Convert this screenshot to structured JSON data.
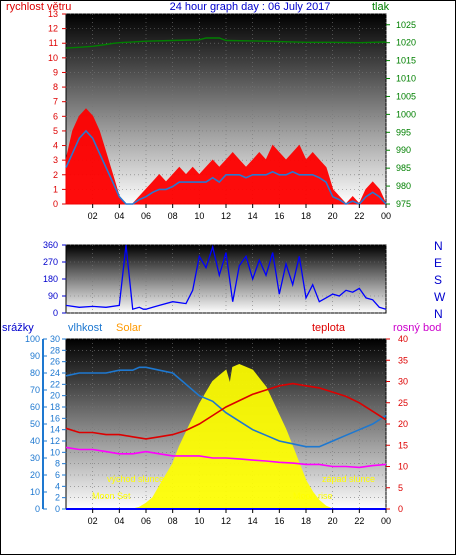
{
  "chart_data": [
    {
      "type": "line",
      "title": "24 hour graph day : 06 July 2017",
      "left_axis_label": "rychlost větru",
      "right_axis_label": "tlak",
      "x_tick_labels": [
        "02",
        "04",
        "06",
        "08",
        "10",
        "12",
        "14",
        "16",
        "18",
        "20",
        "22",
        "00"
      ],
      "left_ylim": [
        0,
        13
      ],
      "left_tick_labels": [
        "0",
        "1",
        "2",
        "3",
        "4",
        "5",
        "6",
        "7",
        "8",
        "9",
        "10",
        "11",
        "12",
        "13"
      ],
      "right_ylim": [
        975,
        1028
      ],
      "right_tick_labels": [
        "975",
        "980",
        "985",
        "990",
        "995",
        "1000",
        "1005",
        "1010",
        "1015",
        "1020",
        "1025"
      ],
      "series": [
        {
          "name": "tlak",
          "color": "#008000",
          "x": [
            0,
            1,
            2,
            3,
            3.5,
            4,
            6,
            8,
            10,
            10.5,
            11.5,
            12,
            14,
            16,
            18,
            20,
            22,
            24
          ],
          "y": [
            1018.5,
            1018.7,
            1019,
            1019.5,
            1019.8,
            1020,
            1020.4,
            1020.6,
            1020.8,
            1021.3,
            1021.3,
            1020.6,
            1020.5,
            1020.3,
            1020.1,
            1020.1,
            1020,
            1020.2
          ]
        },
        {
          "color": "#ff0000",
          "x": [
            0,
            0.5,
            1,
            1.5,
            2,
            2.5,
            3,
            3.5,
            4,
            4.5,
            5,
            5.5,
            6,
            6.5,
            7,
            7.5,
            8,
            8.5,
            9,
            9.5,
            10,
            10.5,
            11,
            11.5,
            12,
            12.5,
            13,
            13.5,
            14,
            14.5,
            15,
            15.5,
            16,
            16.5,
            17,
            17.5,
            18,
            18.5,
            19,
            19.5,
            20,
            20.5,
            21,
            21.5,
            22,
            22.5,
            23,
            23.5,
            24
          ],
          "y": [
            3,
            5,
            6,
            6.5,
            6,
            5,
            3.5,
            2,
            0.5,
            0,
            0,
            0.5,
            1,
            1.5,
            2,
            1.5,
            2,
            2.5,
            2,
            2.5,
            2,
            2.5,
            3,
            2.5,
            3,
            3.5,
            3,
            2.5,
            3,
            3.5,
            3,
            4,
            3.5,
            3,
            3.5,
            4,
            3,
            3.5,
            3,
            2.5,
            1,
            0.5,
            0,
            0.5,
            0,
            1,
            1.5,
            1,
            0
          ]
        },
        {
          "color": "#2a78d0",
          "x": [
            0,
            0.5,
            1,
            1.5,
            2,
            2.5,
            3,
            3.5,
            4,
            4.5,
            5,
            5.5,
            6,
            6.5,
            7,
            7.5,
            8,
            8.5,
            9,
            9.5,
            10,
            10.5,
            11,
            11.5,
            12,
            12.5,
            13,
            13.5,
            14,
            14.5,
            15,
            15.5,
            16,
            16.5,
            17,
            17.5,
            18,
            18.5,
            19,
            19.5,
            20,
            20.5,
            21,
            21.5,
            22,
            22.5,
            23,
            23.5,
            24
          ],
          "y": [
            2.5,
            3.5,
            4.5,
            5,
            4.5,
            3.5,
            2.5,
            1.5,
            0.5,
            0,
            0,
            0.3,
            0.5,
            0.8,
            1,
            1,
            1.2,
            1.5,
            1.5,
            1.5,
            1.5,
            1.5,
            1.8,
            1.5,
            2,
            2,
            2,
            1.8,
            2,
            2,
            2,
            2.2,
            2,
            2,
            2.2,
            2,
            2,
            2,
            1.8,
            1.5,
            0.5,
            0.3,
            0,
            0.2,
            0,
            0.5,
            0.8,
            0.5,
            0
          ]
        }
      ]
    },
    {
      "type": "line",
      "ylim": [
        0,
        360
      ],
      "y_tick_labels": [
        "0",
        "90",
        "180",
        "270",
        "360"
      ],
      "right_tick_labels": [
        "N",
        "W",
        "S",
        "E",
        "N"
      ],
      "series": [
        {
          "color": "#0000ff",
          "x": [
            0,
            1,
            2,
            3,
            4,
            4.5,
            5,
            5.5,
            5.8,
            6,
            6.5,
            7,
            8,
            9,
            9.5,
            10,
            10.5,
            11,
            11.5,
            12,
            12.5,
            13,
            13.5,
            14,
            14.5,
            15,
            15.5,
            16,
            16.5,
            17,
            17.5,
            18,
            18.5,
            19,
            19.5,
            20,
            20.5,
            21,
            21.5,
            22,
            22.5,
            23,
            23.5,
            24
          ],
          "y": [
            40,
            30,
            35,
            30,
            40,
            360,
            20,
            30,
            20,
            20,
            30,
            40,
            60,
            50,
            120,
            300,
            240,
            350,
            200,
            320,
            60,
            250,
            300,
            180,
            280,
            200,
            320,
            100,
            260,
            150,
            300,
            80,
            150,
            60,
            80,
            100,
            90,
            120,
            110,
            130,
            80,
            70,
            30,
            20
          ]
        }
      ]
    },
    {
      "type": "line",
      "left_axis_label": "srážky",
      "left_axis_label_2": "vlhkost",
      "left_axis_label_3": "Solar",
      "right_axis_label": "teplota",
      "right_axis_label_2": "rosný bod",
      "x_tick_labels": [
        "02",
        "04",
        "06",
        "08",
        "10",
        "12",
        "14",
        "16",
        "18",
        "20",
        "22",
        "00"
      ],
      "srazky_tick_labels": [
        "0",
        "10",
        "20",
        "30",
        "40",
        "50",
        "60",
        "70",
        "80",
        "90",
        "100"
      ],
      "vlhkost_tick_labels": [
        "0",
        "2",
        "4",
        "6",
        "8",
        "10",
        "12",
        "14",
        "16",
        "18",
        "20",
        "22",
        "24",
        "26",
        "28",
        "30"
      ],
      "solar_ylim": [
        0,
        30
      ],
      "temp_tick_labels": [
        "0",
        "5",
        "10",
        "15",
        "20",
        "25",
        "30",
        "35",
        "40"
      ],
      "temp_ylim": [
        0,
        40
      ],
      "annotations": [
        "východ slunce",
        "západ slunce",
        "Moon Set",
        "Moon rise"
      ],
      "series": [
        {
          "name": "vlhkost",
          "color": "#1e78d0",
          "x": [
            0,
            1,
            2,
            3,
            4,
            5,
            5.5,
            6,
            7,
            8,
            9,
            10,
            11,
            12,
            13,
            14,
            15,
            16,
            17,
            18,
            19,
            20,
            21,
            22,
            23,
            24
          ],
          "y": [
            23.5,
            24,
            24,
            24,
            24.5,
            24.5,
            25,
            25,
            24.5,
            24,
            22,
            20,
            19,
            17,
            15.5,
            14,
            13,
            12,
            11.5,
            11,
            11,
            12,
            13,
            14,
            15,
            16.5
          ]
        },
        {
          "name": "Solar",
          "color": "#ffff00",
          "x": [
            0,
            5,
            5.5,
            6,
            6.5,
            7,
            7.5,
            8,
            8.5,
            9,
            9.5,
            10,
            10.5,
            11,
            11.5,
            12,
            12.3,
            12.5,
            12.8,
            13,
            13.5,
            14,
            14.5,
            15,
            15.5,
            16,
            16.5,
            17,
            17.5,
            18,
            18.5,
            19,
            19.5,
            20,
            24
          ],
          "y": [
            0,
            0,
            0.3,
            1,
            2,
            4,
            6,
            8,
            11,
            13.5,
            16,
            18.5,
            20.5,
            22.5,
            23.5,
            24.5,
            22,
            25,
            25.3,
            25.5,
            25,
            24.5,
            23,
            21.5,
            19,
            16.5,
            14,
            11,
            8,
            5,
            3,
            1.5,
            0.5,
            0,
            0
          ]
        },
        {
          "name": "teplota",
          "color": "#dd0000",
          "x": [
            0,
            1,
            2,
            3,
            4,
            5,
            6,
            7,
            8,
            9,
            10,
            11,
            12,
            13,
            14,
            15,
            16,
            17,
            18,
            19,
            20,
            21,
            22,
            23,
            24
          ],
          "y": [
            19,
            18,
            18,
            17.5,
            17.5,
            17,
            16.5,
            17,
            17.5,
            18.5,
            20,
            22,
            24,
            25.5,
            27,
            28,
            29,
            29.5,
            29,
            28.5,
            27.5,
            26.5,
            25,
            23,
            21
          ]
        },
        {
          "name": "rosný bod",
          "color": "#ff00ff",
          "x": [
            0,
            1,
            2,
            3,
            4,
            5,
            6,
            7,
            8,
            9,
            10,
            11,
            12,
            13,
            14,
            15,
            16,
            17,
            18,
            19,
            20,
            21,
            22,
            23,
            24
          ],
          "y": [
            14.5,
            14,
            14,
            13.5,
            13,
            13,
            13.5,
            13,
            12.5,
            12.5,
            12.5,
            12,
            12,
            11.8,
            11.5,
            11.3,
            11,
            10.8,
            10.5,
            10.5,
            10,
            10,
            9.8,
            10.2,
            10.5
          ]
        },
        {
          "name": "srážky",
          "color": "#0000ff",
          "x": [
            0,
            24
          ],
          "y": [
            0,
            0
          ]
        }
      ]
    }
  ]
}
